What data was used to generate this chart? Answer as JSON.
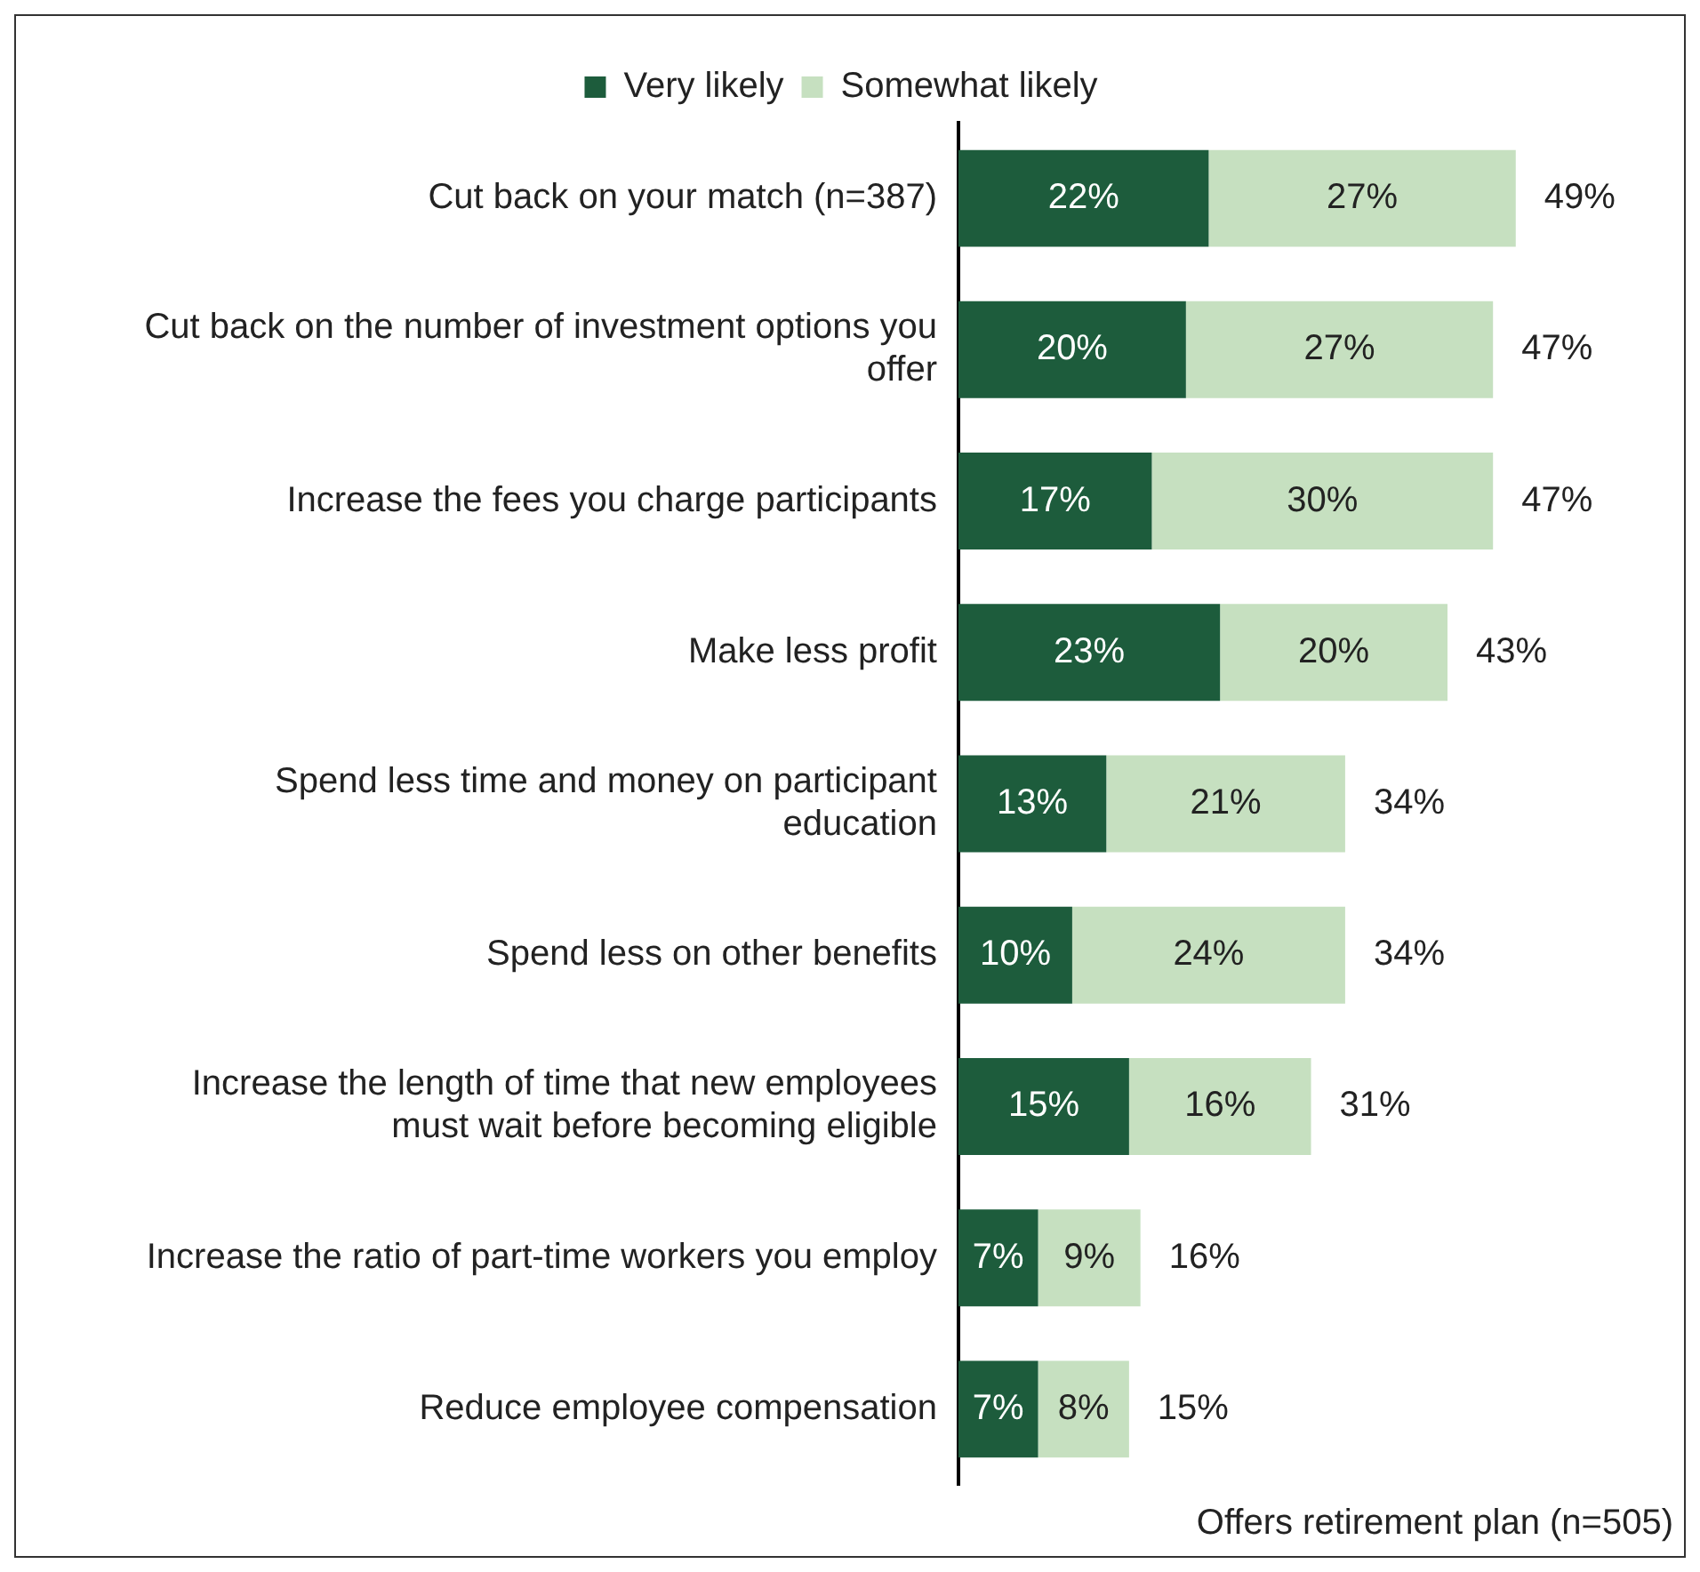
{
  "chart_data": {
    "type": "bar",
    "orientation": "horizontal",
    "stacked": true,
    "legend": "top",
    "categories": [
      "Cut back on your match (n=387)",
      "Cut back on the number of investment options you offer",
      "Increase the fees you charge participants",
      "Make less profit",
      "Spend less time and money on participant education",
      "Spend less on other benefits",
      "Increase the length of time that new employees must wait before becoming eligible",
      "Increase the ratio of part-time workers you employ",
      "Reduce employee compensation"
    ],
    "series": [
      {
        "name": "Very likely",
        "color": "#1d5c3c",
        "values": [
          22,
          20,
          17,
          23,
          13,
          10,
          15,
          7,
          7
        ],
        "value_labels": [
          "22%",
          "20%",
          "17%",
          "23%",
          "13%",
          "10%",
          "15%",
          "7%",
          "7%"
        ]
      },
      {
        "name": "Somewhat likely",
        "color": "#c6e0c0",
        "values": [
          27,
          27,
          30,
          20,
          21,
          24,
          16,
          9,
          8
        ],
        "value_labels": [
          "27%",
          "27%",
          "30%",
          "20%",
          "21%",
          "24%",
          "16%",
          "9%",
          "8%"
        ]
      }
    ],
    "totals": [
      "49%",
      "47%",
      "47%",
      "43%",
      "34%",
      "34%",
      "31%",
      "16%",
      "15%"
    ],
    "annotations": [
      "Offers retirement plan (n=505)"
    ]
  }
}
